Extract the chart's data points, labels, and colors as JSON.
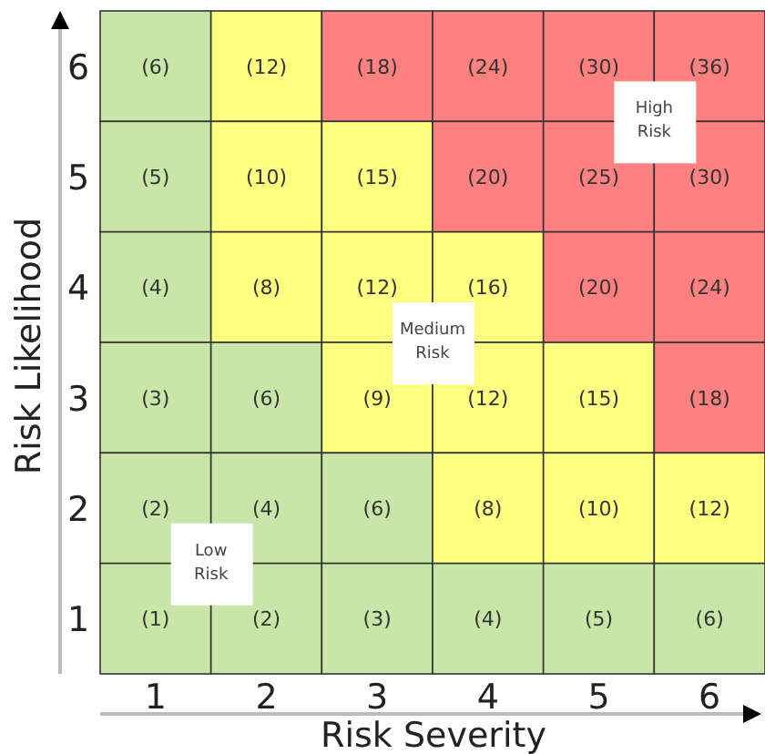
{
  "chart_data": {
    "type": "heatmap",
    "xlabel": "Risk Severity",
    "ylabel": "Risk Likelihood",
    "categories": [
      "1",
      "2",
      "3",
      "4",
      "5",
      "6"
    ],
    "y_categories": [
      "6",
      "5",
      "4",
      "3",
      "2",
      "1"
    ],
    "cells": [
      [
        6,
        12,
        18,
        24,
        30,
        36
      ],
      [
        5,
        10,
        15,
        20,
        25,
        30
      ],
      [
        4,
        8,
        12,
        16,
        20,
        24
      ],
      [
        3,
        6,
        9,
        12,
        15,
        18
      ],
      [
        2,
        4,
        6,
        8,
        10,
        12
      ],
      [
        1,
        2,
        3,
        4,
        5,
        6
      ]
    ],
    "cell_labels": [
      [
        "(6)",
        "(12)",
        "(18)",
        "(24)",
        "(30)",
        "(36)"
      ],
      [
        "(5)",
        "(10)",
        "(15)",
        "(20)",
        "(25)",
        "(30)"
      ],
      [
        "(4)",
        "(8)",
        "(12)",
        "(16)",
        "(20)",
        "(24)"
      ],
      [
        "(3)",
        "(6)",
        "(9)",
        "(12)",
        "(15)",
        "(18)"
      ],
      [
        "(2)",
        "(4)",
        "(6)",
        "(8)",
        "(10)",
        "(12)"
      ],
      [
        "(1)",
        "(2)",
        "(3)",
        "(4)",
        "(5)",
        "(6)"
      ]
    ],
    "colors": [
      "#c8e6a8",
      "#ffff80",
      "#ff8080"
    ],
    "annotations": [
      "High Risk",
      "Medium Risk",
      "Low Risk"
    ]
  }
}
